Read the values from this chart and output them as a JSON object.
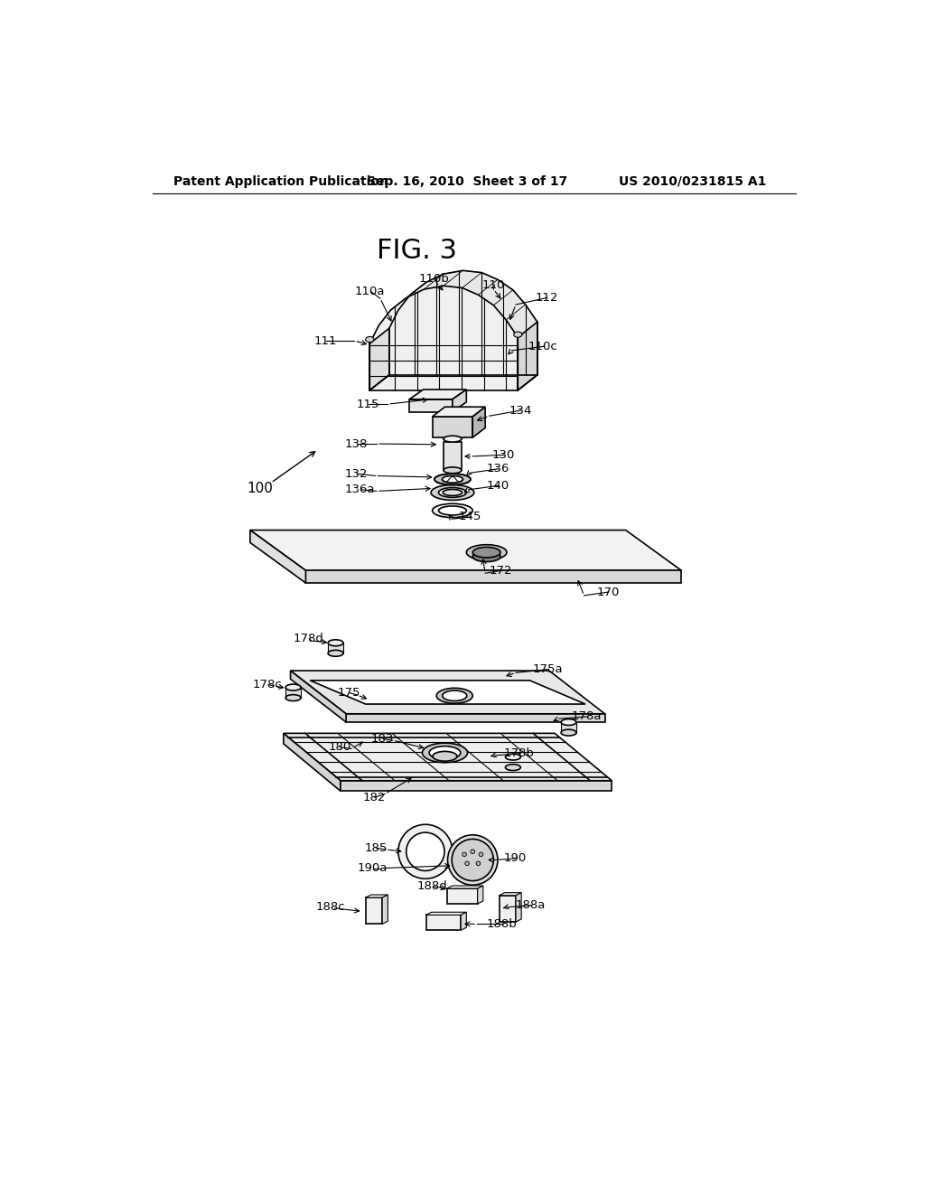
{
  "bg_color": "#ffffff",
  "header_left": "Patent Application Publication",
  "header_mid": "Sep. 16, 2010  Sheet 3 of 17",
  "header_right": "US 2010/0231815 A1",
  "fig_label": "FIG. 3",
  "lw": 1.2,
  "lw_thin": 0.8
}
